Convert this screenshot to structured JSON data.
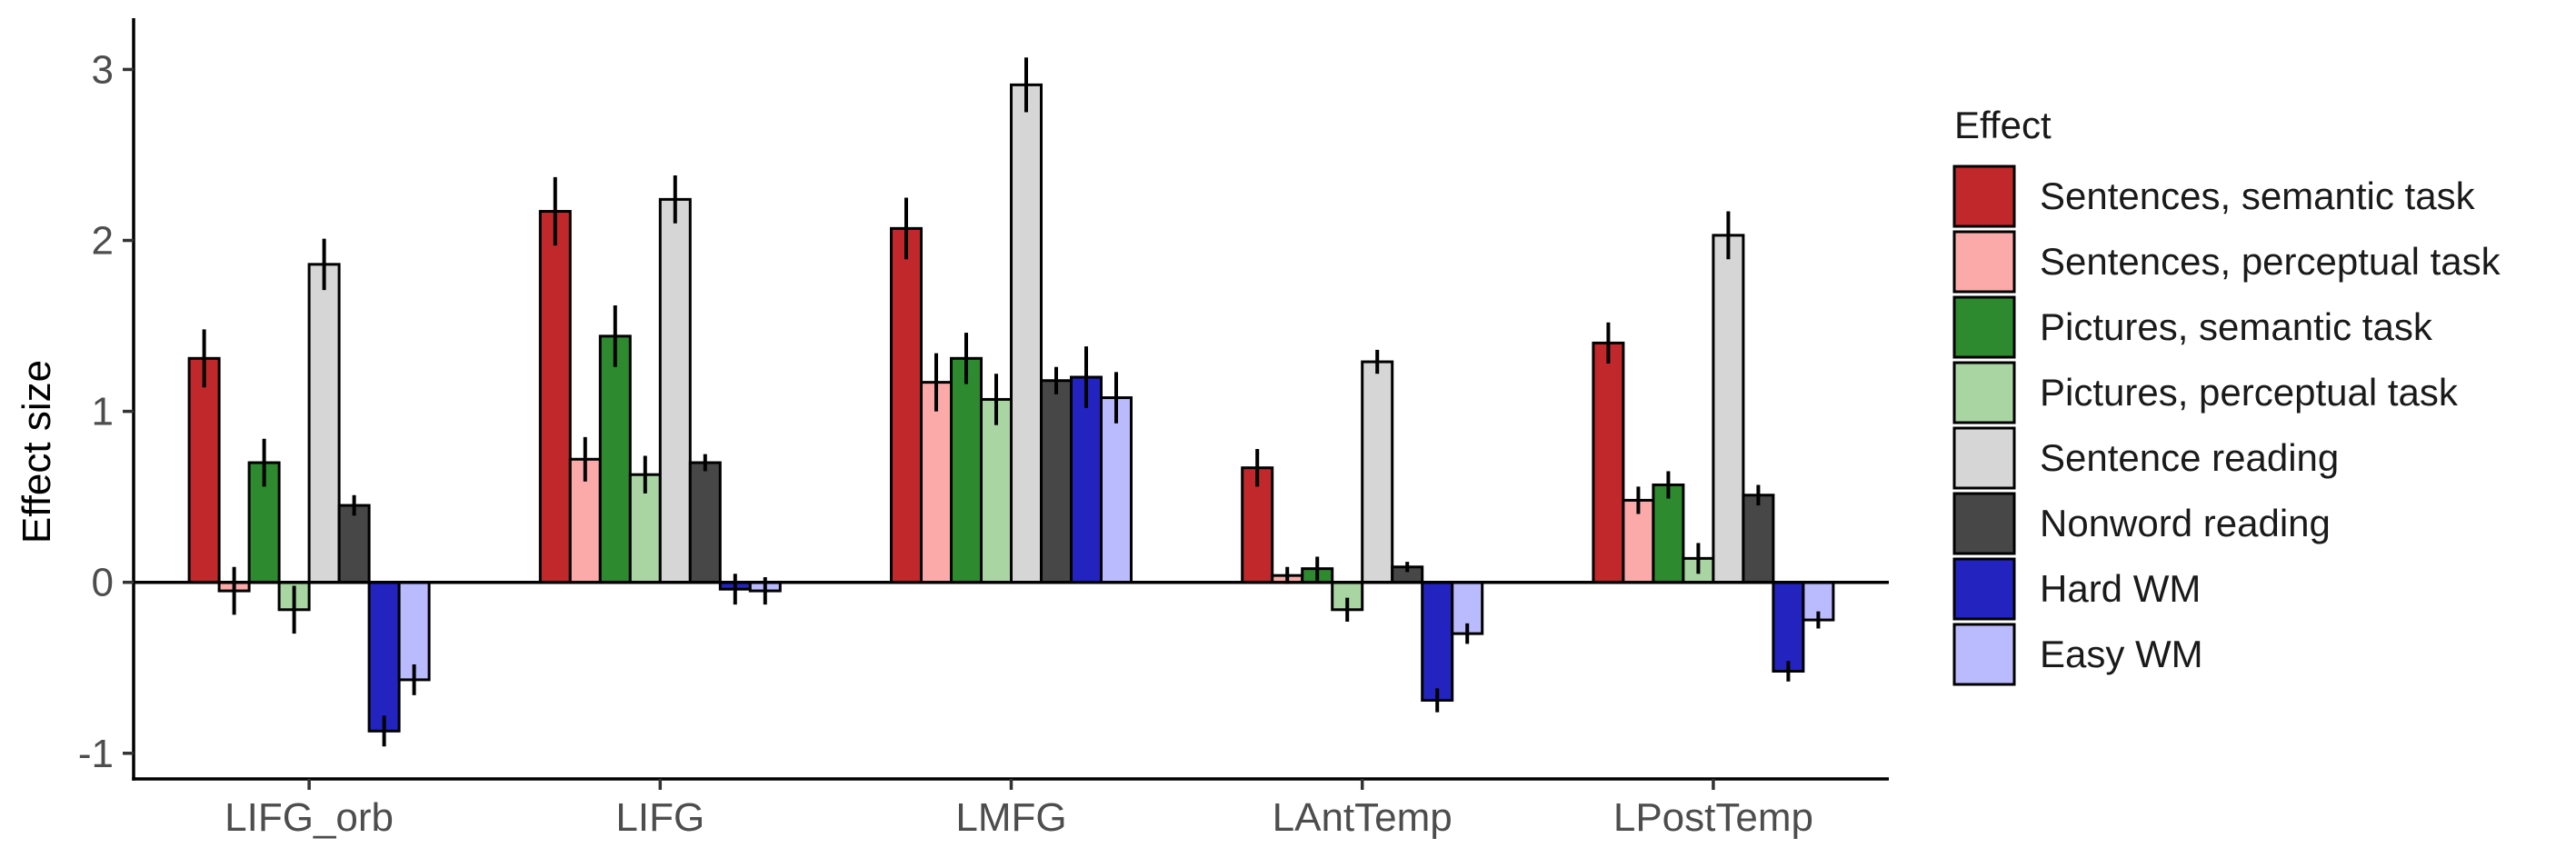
{
  "chart_data": {
    "type": "bar",
    "ylabel": "Effect size",
    "ylim": [
      -1.15,
      3.3
    ],
    "y_ticks": [
      -1,
      0,
      1,
      2,
      3
    ],
    "categories": [
      "LIFG_orb",
      "LIFG",
      "LMFG",
      "LAntTemp",
      "LPostTemp"
    ],
    "legend": {
      "title": "Effect",
      "position": "right"
    },
    "grid": false,
    "series": [
      {
        "name": "Sentences, semantic task",
        "color": "#c0282b",
        "values": [
          1.31,
          2.17,
          2.07,
          0.67,
          1.4
        ],
        "errors": [
          0.17,
          0.2,
          0.18,
          0.11,
          0.12
        ]
      },
      {
        "name": "Sentences, perceptual task",
        "color": "#fbaaa9",
        "values": [
          -0.05,
          0.72,
          1.17,
          0.04,
          0.48
        ],
        "errors": [
          0.14,
          0.13,
          0.17,
          0.05,
          0.08
        ]
      },
      {
        "name": "Pictures, semantic task",
        "color": "#2e8a2e",
        "values": [
          0.7,
          1.44,
          1.31,
          0.08,
          0.57
        ],
        "errors": [
          0.14,
          0.18,
          0.15,
          0.07,
          0.08
        ]
      },
      {
        "name": "Pictures, perceptual task",
        "color": "#a8d5a2",
        "values": [
          -0.16,
          0.63,
          1.07,
          -0.16,
          0.14
        ],
        "errors": [
          0.14,
          0.11,
          0.15,
          0.07,
          0.09
        ]
      },
      {
        "name": "Sentence reading",
        "color": "#d6d6d6",
        "values": [
          1.86,
          2.24,
          2.91,
          1.29,
          2.03
        ],
        "errors": [
          0.15,
          0.14,
          0.16,
          0.07,
          0.14
        ]
      },
      {
        "name": "Nonword reading",
        "color": "#474747",
        "values": [
          0.45,
          0.7,
          1.18,
          0.09,
          0.51
        ],
        "errors": [
          0.06,
          0.05,
          0.08,
          0.03,
          0.06
        ]
      },
      {
        "name": "Hard WM",
        "color": "#2324c0",
        "values": [
          -0.87,
          -0.04,
          1.2,
          -0.69,
          -0.52
        ],
        "errors": [
          0.09,
          0.09,
          0.18,
          0.07,
          0.06
        ]
      },
      {
        "name": "Easy WM",
        "color": "#babaff",
        "values": [
          -0.57,
          -0.05,
          1.08,
          -0.3,
          -0.22
        ],
        "errors": [
          0.09,
          0.08,
          0.15,
          0.06,
          0.05
        ]
      }
    ]
  }
}
